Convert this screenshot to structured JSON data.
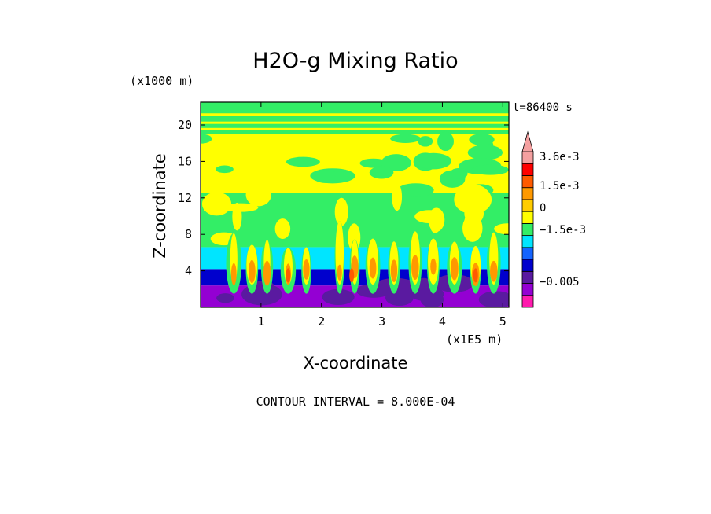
{
  "chart_data": {
    "type": "heatmap",
    "title": "H2O-g Mixing Ratio",
    "xlabel": "X-coordinate",
    "ylabel": "Z-coordinate",
    "x_multiplier": "(x1E5 m)",
    "y_multiplier": "(x1000 m)",
    "time_label": "t=86400 s",
    "footer": "CONTOUR INTERVAL = 8.000E-04",
    "xlim": [
      0,
      5.1
    ],
    "ylim": [
      0,
      22.5
    ],
    "x_ticks": [
      1,
      2,
      3,
      4,
      5
    ],
    "y_ticks": [
      4,
      8,
      12,
      16,
      20
    ],
    "x_tick_labels": [
      "1",
      "2",
      "3",
      "4",
      "5"
    ],
    "y_tick_labels": [
      "4",
      "8",
      "12",
      "16",
      "20"
    ],
    "colorbar": {
      "colors": [
        "#ff1aae",
        "#9400d3",
        "#5a1aa0",
        "#0000cd",
        "#1464ff",
        "#00e5ff",
        "#33ee66",
        "#ffff00",
        "#ffcc00",
        "#ff9900",
        "#ff5a00",
        "#ff0000",
        "#f4a0a0"
      ],
      "labels": [
        "3.6e-3",
        "1.5e-3",
        "0",
        "−1.5e-3",
        "−0.005"
      ],
      "label_values": [
        0.0036,
        0.0015,
        0,
        -0.0015,
        -0.005
      ],
      "extend_top": true
    },
    "bands": [
      {
        "z": [
          0,
          2.4
        ],
        "color": "#9400d3"
      },
      {
        "z": [
          2.4,
          4.2
        ],
        "color": "#0000cd"
      },
      {
        "z": [
          4.2,
          6.6
        ],
        "color": "#00e5ff"
      },
      {
        "z": [
          6.6,
          12.5
        ],
        "color": "#33ee66"
      },
      {
        "z": [
          12.5,
          19
        ],
        "color": "#ffff00"
      },
      {
        "z": [
          19,
          22.5
        ],
        "color": "#33ee66"
      }
    ]
  }
}
